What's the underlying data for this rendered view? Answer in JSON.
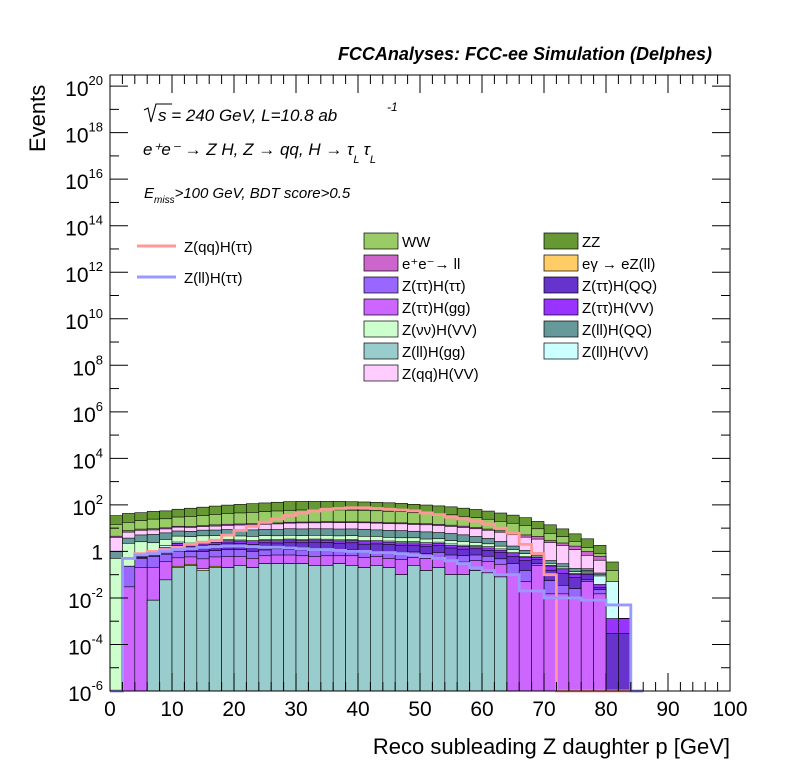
{
  "chart_data": {
    "type": "area",
    "title": "FCCAnalyses: FCC-ee Simulation (Delphes)",
    "xlabel": "Reco subleading Z daughter p [GeV]",
    "ylabel": "Events",
    "xlim": [
      0,
      100
    ],
    "ylim": [
      1e-06,
      3e+20
    ],
    "yscale": "log",
    "grid": false,
    "legend_position": "top-right",
    "x_ticks": [
      "0",
      "10",
      "20",
      "30",
      "40",
      "50",
      "60",
      "70",
      "80",
      "90",
      "100"
    ],
    "y_ticks": [
      {
        "base": "10",
        "exp": "20"
      },
      {
        "base": "10",
        "exp": "18"
      },
      {
        "base": "10",
        "exp": "16"
      },
      {
        "base": "10",
        "exp": "14"
      },
      {
        "base": "10",
        "exp": "12"
      },
      {
        "base": "10",
        "exp": "10"
      },
      {
        "base": "10",
        "exp": "8"
      },
      {
        "base": "10",
        "exp": "6"
      },
      {
        "base": "10",
        "exp": "4"
      },
      {
        "base": "10",
        "exp": "2"
      },
      {
        "base": "1",
        "exp": ""
      },
      {
        "base": "10",
        "exp": "-2"
      },
      {
        "base": "10",
        "exp": "-4"
      },
      {
        "base": "10",
        "exp": "-6"
      }
    ],
    "annotations": {
      "line1": "s = 240 GeV, L=10.8 ab",
      "line1_exp": "-1",
      "line2": "e⁺e⁻ → Z H, Z → qq, H → τ",
      "line2_sub": "L",
      "line3_pre": "E",
      "line3_sub": "miss",
      "line3_post": ">100 GeV, BDT score>0.5"
    },
    "bin_edges": [
      0,
      2,
      4,
      6,
      8,
      10,
      12,
      14,
      16,
      18,
      20,
      22,
      24,
      26,
      28,
      30,
      32,
      34,
      36,
      38,
      40,
      42,
      44,
      46,
      48,
      50,
      52,
      54,
      56,
      58,
      60,
      62,
      64,
      66,
      68,
      70,
      72,
      74,
      76,
      78,
      80,
      82,
      84,
      86
    ],
    "stack_series": [
      {
        "name": "Z(ll)H(gg)",
        "color": "#99cccc",
        "values": [
          0,
          0,
          0,
          0.008,
          0.06,
          0.2,
          0.25,
          0.15,
          0.2,
          0.2,
          0.25,
          0.2,
          0.3,
          0.3,
          0.3,
          0.3,
          0.25,
          0.25,
          0.3,
          0.25,
          0.2,
          0.25,
          0.2,
          0.1,
          0.25,
          0.15,
          0.2,
          0.1,
          0.1,
          0.15,
          0.12,
          0.08,
          0,
          0,
          0,
          0,
          0,
          0,
          0,
          0,
          0,
          0,
          0
        ]
      },
      {
        "name": "eγ → eZ(ll)",
        "color": "#ffcc66",
        "values": [
          0,
          0,
          0,
          0,
          0,
          0.03,
          0.03,
          0.03,
          0.03,
          0,
          0,
          0,
          0,
          0,
          0,
          0,
          0,
          0,
          0,
          0,
          0,
          0,
          0,
          0,
          0,
          0,
          0,
          0,
          0,
          0,
          0,
          0,
          0,
          0,
          0,
          0,
          0,
          0,
          0,
          0,
          0,
          0,
          0
        ]
      },
      {
        "name": "Z(ττ)H(gg)",
        "color": "#cc66ff",
        "values": [
          0,
          0.03,
          0.2,
          0.2,
          0.3,
          0.3,
          0.3,
          0.3,
          0.35,
          0.4,
          0.35,
          0.3,
          0.35,
          0.4,
          0.4,
          0.35,
          0.35,
          0.4,
          0.35,
          0.4,
          0.35,
          0.35,
          0.3,
          0.35,
          0.3,
          0.35,
          0.3,
          0.3,
          0.25,
          0.25,
          0.25,
          0.2,
          0.1,
          0.05,
          0.25,
          0.015,
          0.015,
          0.01,
          0.05,
          0.015,
          0,
          0,
          0
        ]
      },
      {
        "name": "Z(ττ)H(ττ)",
        "color": "#9966ff",
        "values": [
          0,
          0.2,
          0.3,
          0.4,
          0.4,
          0.5,
          0.4,
          0.5,
          0.5,
          0.6,
          0.6,
          0.5,
          0.5,
          0.6,
          0.5,
          0.5,
          0.6,
          0.6,
          0.5,
          0.5,
          0.5,
          0.4,
          0.5,
          0.4,
          0.4,
          0.3,
          0.4,
          0.3,
          0.3,
          0.3,
          0.25,
          0.2,
          0.2,
          0.1,
          0.05,
          0.04,
          0.02,
          0.015,
          0.01,
          0.008,
          0,
          0,
          0
        ]
      },
      {
        "name": "Z(ττ)H(QQ)",
        "color": "#6633cc",
        "values": [
          0,
          0,
          0.05,
          0.1,
          0.5,
          0.8,
          0.6,
          0.9,
          0.9,
          1.1,
          1.0,
          1.0,
          1.2,
          1.0,
          1.3,
          1.2,
          1.3,
          1.2,
          1.1,
          1.2,
          1.0,
          1.1,
          1.0,
          1.0,
          0.9,
          0.8,
          0.9,
          0.7,
          0.6,
          0.6,
          0.5,
          0.4,
          0.3,
          0.25,
          0.15,
          0.1,
          0.08,
          0.05,
          0.04,
          0.005,
          0.0003,
          0.0003,
          0
        ]
      },
      {
        "name": "Z(ττ)H(VV)",
        "color": "#9933ff",
        "values": [
          0,
          0,
          0.05,
          0.05,
          0.2,
          0.4,
          0.4,
          0.5,
          0.5,
          0.6,
          0.6,
          0.6,
          0.6,
          0.6,
          0.6,
          0.6,
          0.6,
          0.6,
          0.6,
          0.6,
          0.6,
          0.5,
          0.5,
          0.5,
          0.5,
          0.5,
          0.4,
          0.4,
          0.4,
          0.3,
          0.3,
          0.25,
          0.2,
          0.15,
          0.1,
          0.08,
          0.05,
          0.03,
          0.02,
          0.01,
          0.001,
          0.001,
          0
        ]
      },
      {
        "name": "Z(ll)H(VV)",
        "color": "#ccffff",
        "values": [
          0,
          0,
          0,
          0.1,
          0.3,
          0.3,
          0.3,
          0.3,
          0.3,
          0.3,
          0.3,
          0.3,
          0.3,
          0.3,
          0.3,
          0.3,
          0.3,
          0.3,
          0.3,
          0.3,
          0.3,
          0.3,
          0.3,
          0.3,
          0.3,
          0.3,
          0.3,
          0.3,
          0.2,
          0.2,
          0.2,
          0.15,
          0.1,
          0.05,
          0.03,
          0.02,
          0.02,
          0.01,
          0.02,
          0.05,
          0.05,
          0,
          0
        ]
      },
      {
        "name": "Z(νν)H(VV)",
        "color": "#ccffcc",
        "values": [
          0.5,
          2,
          2,
          1.5,
          1.5,
          2,
          2,
          2,
          2,
          1.5,
          1.5,
          1.5,
          1.5,
          1.5,
          1.5,
          1.5,
          1.5,
          1.5,
          1.5,
          1.5,
          1.5,
          1.5,
          1.2,
          1.2,
          1.2,
          1.0,
          1.0,
          0.8,
          0.8,
          0.6,
          0.5,
          0.4,
          0.3,
          0.2,
          0.1,
          0.05,
          0.03,
          0.02,
          0.01,
          0.01,
          0,
          0,
          0
        ]
      },
      {
        "name": "Z(ll)H(QQ)",
        "color": "#669999",
        "values": [
          0.5,
          1.5,
          2.5,
          3,
          3,
          3,
          3,
          3.5,
          3.5,
          4,
          4,
          4,
          4,
          4,
          4.5,
          4.5,
          4.5,
          4.5,
          4.5,
          4.5,
          4.5,
          4,
          4,
          4,
          3.5,
          3.5,
          3,
          3,
          2.5,
          2,
          1.5,
          1,
          0.5,
          0.3,
          0.2,
          0.1,
          0.08,
          0.05,
          0.03,
          0.02,
          0,
          0,
          0
        ]
      },
      {
        "name": "Z(qq)H(VV)",
        "color": "#ffccff",
        "values": [
          3,
          3,
          3,
          3,
          3,
          3.5,
          3.5,
          3.5,
          4,
          4.5,
          5,
          5.5,
          6,
          6.5,
          7,
          7.5,
          7.5,
          8,
          8,
          8,
          8,
          8,
          7.5,
          7.5,
          7,
          7,
          6.5,
          6,
          5.5,
          5,
          4.5,
          4,
          3.5,
          3,
          2.5,
          2,
          1.5,
          1,
          0.5,
          0.3,
          0,
          0,
          0
        ]
      },
      {
        "name": "e⁺e⁻→ ll",
        "color": "#cc66cc",
        "values": [
          0.5,
          1,
          1,
          1,
          1,
          1,
          1,
          1,
          1.5,
          1.5,
          1.5,
          1.5,
          1.5,
          1.5,
          1.5,
          1.5,
          1.5,
          1.5,
          1.5,
          1.5,
          1.5,
          1.5,
          1.5,
          1.5,
          1.5,
          1.5,
          1.5,
          1.5,
          1.5,
          1,
          1,
          1,
          1,
          1,
          1,
          0.5,
          0.5,
          0.5,
          0.3,
          0.2,
          0,
          0,
          0
        ]
      },
      {
        "name": "WW",
        "color": "#99cc66",
        "values": [
          10,
          10,
          12,
          15,
          15,
          18,
          20,
          22,
          25,
          28,
          30,
          32,
          35,
          38,
          40,
          42,
          42,
          42,
          42,
          40,
          40,
          38,
          36,
          34,
          30,
          28,
          26,
          24,
          20,
          18,
          15,
          12,
          10,
          8,
          5,
          3,
          2,
          1,
          0.5,
          0.2,
          0.1,
          0,
          0
        ]
      },
      {
        "name": "ZZ",
        "color": "#669933",
        "values": [
          20,
          25,
          25,
          28,
          30,
          35,
          40,
          45,
          50,
          55,
          60,
          65,
          70,
          75,
          80,
          80,
          80,
          80,
          80,
          78,
          75,
          72,
          70,
          65,
          60,
          55,
          50,
          45,
          40,
          35,
          30,
          25,
          20,
          15,
          10,
          8,
          5,
          3,
          2,
          1,
          0.2,
          0,
          0
        ]
      }
    ],
    "line_series": [
      {
        "name": "Z(qq)H(ττ)",
        "color": "#ff9999",
        "values": [
          1e-06,
          0.5,
          0.8,
          1,
          1.2,
          1.5,
          2,
          2.5,
          3,
          5,
          8,
          12,
          18,
          25,
          35,
          45,
          55,
          65,
          70,
          75,
          75,
          70,
          65,
          60,
          55,
          45,
          38,
          30,
          25,
          20,
          15,
          10,
          6,
          2,
          0.8,
          0.1,
          1e-06,
          1e-06,
          1e-06,
          1e-06,
          1e-06,
          1e-06,
          1e-06
        ]
      },
      {
        "name": "Z(ll)H(ττ)",
        "color": "#9999ff",
        "values": [
          1e-06,
          0.5,
          0.7,
          0.8,
          1,
          1.2,
          1.3,
          1.5,
          1.6,
          1.7,
          1.7,
          1.6,
          1.5,
          1.5,
          1.4,
          1.3,
          1.2,
          1.2,
          1.1,
          1,
          1,
          0.9,
          0.9,
          0.8,
          0.7,
          0.6,
          0.5,
          0.4,
          0.3,
          0.2,
          0.15,
          0.1,
          0.1,
          0.02,
          0.02,
          0.01,
          0.01,
          0.01,
          0.008,
          0.008,
          0.005,
          0.005,
          1e-06
        ]
      }
    ],
    "legend": {
      "lines": [
        "Z(qq)H(ττ)",
        "Z(ll)H(ττ)"
      ],
      "col1": [
        "WW",
        "e⁺e⁻→ ll",
        "Z(ττ)H(ττ)",
        "Z(ττ)H(gg)",
        "Z(νν)H(VV)",
        "Z(ll)H(gg)",
        "Z(qq)H(VV)"
      ],
      "col2": [
        "ZZ",
        "eγ → eZ(ll)",
        "Z(ττ)H(QQ)",
        "Z(ττ)H(VV)",
        "Z(ll)H(QQ)",
        "Z(ll)H(VV)"
      ]
    }
  }
}
